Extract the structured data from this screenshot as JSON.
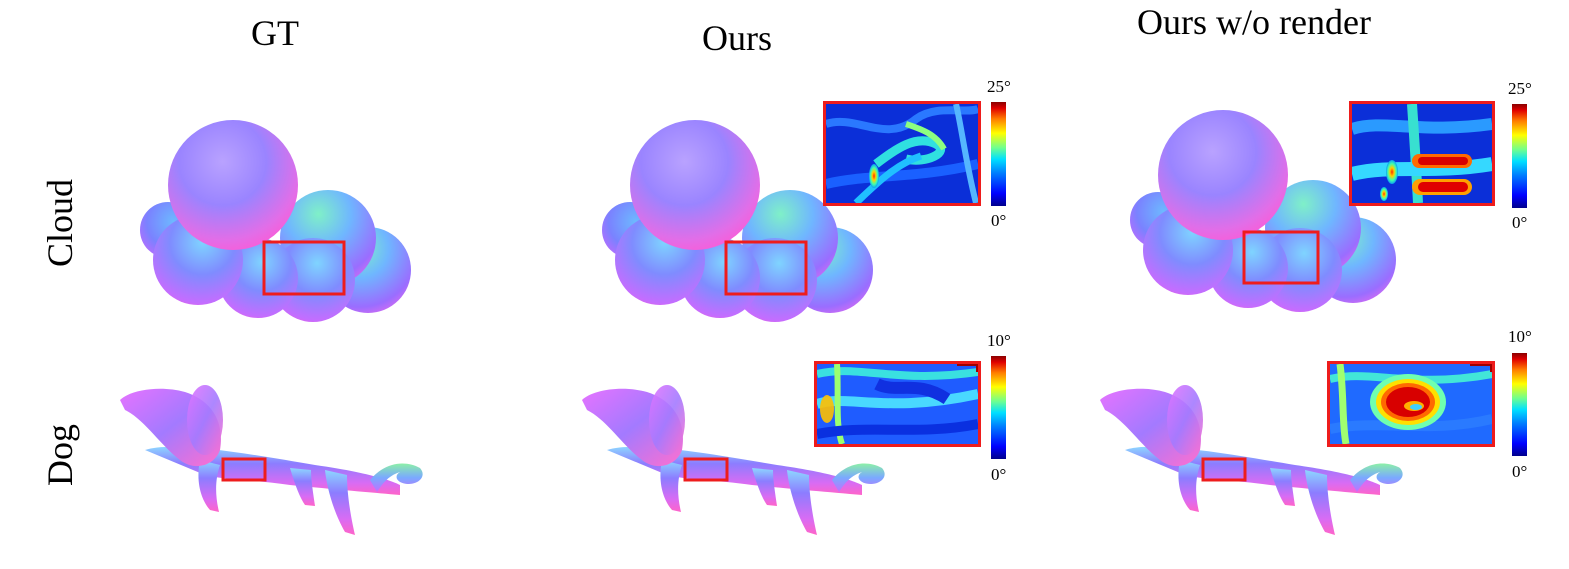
{
  "columns": {
    "gt": "GT",
    "ours": "Ours",
    "ours_wo_render": "Ours w/o render"
  },
  "rows": {
    "cloud": "Cloud",
    "dog": "Dog"
  },
  "colorbars": {
    "cloud": {
      "max": "25°",
      "min": "0°"
    },
    "dog": {
      "max": "10°",
      "min": "0°"
    }
  },
  "colors": {
    "highlight_box": "#ee1c1c",
    "colormap": "jet"
  }
}
